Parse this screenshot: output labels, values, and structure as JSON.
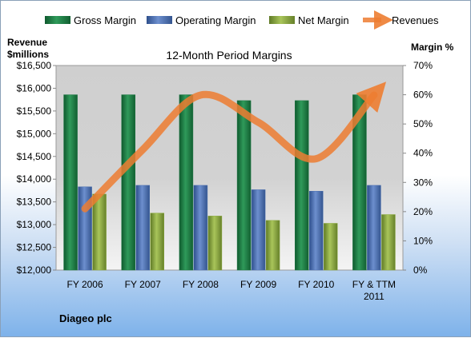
{
  "chart_data": {
    "type": "bar",
    "title": "12-Month Period Margins",
    "categories": [
      "FY 2006",
      "FY 2007",
      "FY 2008",
      "FY 2009",
      "FY 2010",
      "FY & TTM 2011"
    ],
    "series": [
      {
        "name": "Gross Margin",
        "kind": "bar",
        "axis": "right",
        "color": "#1f7a45",
        "values": [
          60,
          60,
          60,
          58,
          58,
          60
        ]
      },
      {
        "name": "Operating Margin",
        "kind": "bar",
        "axis": "right",
        "color": "#4a6fb0",
        "values": [
          28.5,
          29,
          29,
          27.5,
          27,
          29
        ]
      },
      {
        "name": "Net Margin",
        "kind": "bar",
        "axis": "right",
        "color": "#8aaa3c",
        "values": [
          26,
          19.5,
          18.5,
          17,
          16,
          19
        ]
      },
      {
        "name": "Revenues",
        "kind": "line",
        "axis": "left",
        "color": "#ed7d31",
        "values": [
          13350,
          14650,
          15850,
          15250,
          14450,
          15850
        ]
      }
    ],
    "y_left": {
      "label_line1": "Revenue",
      "label_line2": "$millions",
      "range": [
        12000,
        16500
      ],
      "ticks": [
        "$12,000",
        "$12,500",
        "$13,000",
        "$13,500",
        "$14,000",
        "$14,500",
        "$15,000",
        "$15,500",
        "$16,000",
        "$16,500"
      ]
    },
    "y_right": {
      "label": "Margin %",
      "range": [
        0,
        70
      ],
      "ticks": [
        "0%",
        "10%",
        "20%",
        "30%",
        "40%",
        "50%",
        "60%",
        "70%"
      ]
    },
    "legend_position": "top",
    "grid": false,
    "company": "Diageo plc"
  }
}
